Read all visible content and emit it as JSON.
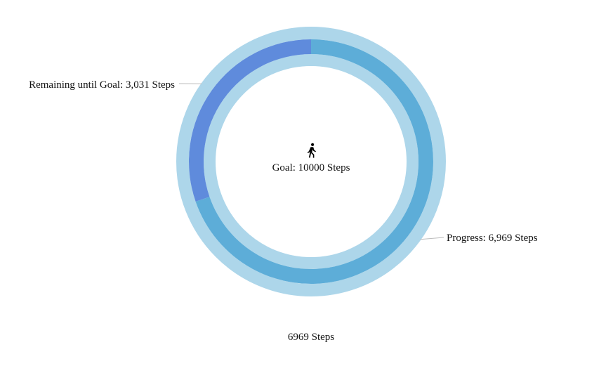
{
  "chart_data": {
    "type": "pie",
    "goal": 10000,
    "center_icon": "walking-person-icon",
    "center_label": "Goal: 10000 Steps",
    "footer_label": "6969 Steps",
    "slices": [
      {
        "name": "Progress",
        "value": 6969,
        "label": "Progress: 6,969 Steps",
        "color": "#5dadd8"
      },
      {
        "name": "Remaining until Goal",
        "value": 3031,
        "label": "Remaining until Goal: 3,031 Steps",
        "color": "#5f8bdc"
      }
    ],
    "track_color": "#add6ea",
    "leader_line_color": "#bbbbbb"
  }
}
